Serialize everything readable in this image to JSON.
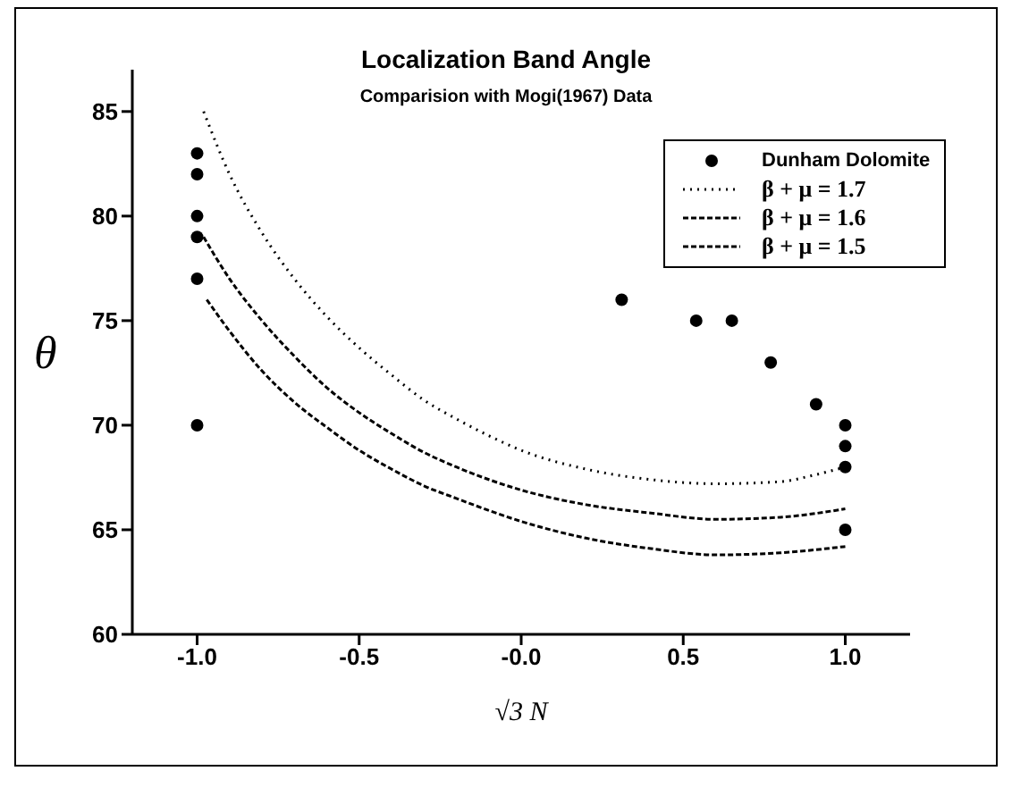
{
  "chart_data": {
    "type": "line",
    "title": "Localization Band Angle",
    "subtitle": "Comparision with Mogi(1967) Data",
    "xlabel": "√3 N",
    "ylabel": "θ",
    "xlim": [
      -1.2,
      1.2
    ],
    "xticks": [
      {
        "value": -1,
        "label": "-1.0"
      },
      {
        "value": -0.5,
        "label": "-0.5"
      },
      {
        "value": 0,
        "label": "-0.0"
      },
      {
        "value": 0.5,
        "label": "0.5"
      },
      {
        "value": 1,
        "label": "1.0"
      }
    ],
    "ylim": [
      60,
      87
    ],
    "yticks": [
      60,
      65,
      70,
      75,
      80,
      85
    ],
    "grid": false,
    "legend": "top right",
    "series": [
      {
        "name": "Dunham Dolomite",
        "type": "scatter",
        "marker": "circle",
        "color": "#000000",
        "x": [
          -1,
          -1,
          -1,
          -1,
          -1,
          -1,
          0.31,
          0.54,
          0.65,
          0.77,
          0.91,
          1,
          1,
          1,
          1
        ],
        "values": [
          83,
          82,
          80,
          79,
          77,
          70,
          76,
          75,
          75,
          73,
          71,
          70,
          69,
          68,
          65
        ]
      },
      {
        "name": "β + μ = 1.7",
        "marker": "none",
        "line_style": "dotted",
        "color": "#000000",
        "x": [
          -0.98,
          -0.9,
          -0.8,
          -0.7,
          -0.6,
          -0.5,
          -0.4,
          -0.3,
          -0.2,
          -0.1,
          0,
          0.2,
          0.4,
          0.6,
          0.8,
          0.9,
          1
        ],
        "values": [
          85,
          82,
          79.2,
          77,
          75.2,
          73.7,
          72.4,
          71.2,
          70.3,
          69.5,
          68.8,
          67.9,
          67.4,
          67.2,
          67.3,
          67.6,
          68
        ]
      },
      {
        "name": "β + μ = 1.6",
        "marker": "none",
        "line_style": "dashed",
        "color": "#000000",
        "x": [
          -0.98,
          -0.9,
          -0.8,
          -0.7,
          -0.6,
          -0.5,
          -0.4,
          -0.3,
          -0.2,
          -0.1,
          0,
          0.2,
          0.4,
          0.6,
          0.8,
          1
        ],
        "values": [
          79,
          77,
          75,
          73.3,
          71.8,
          70.6,
          69.6,
          68.7,
          68,
          67.4,
          66.9,
          66.2,
          65.8,
          65.5,
          65.6,
          66
        ]
      },
      {
        "name": "β + μ = 1.5",
        "marker": "none",
        "line_style": "dashed",
        "color": "#000000",
        "x": [
          -0.97,
          -0.9,
          -0.8,
          -0.7,
          -0.6,
          -0.5,
          -0.4,
          -0.3,
          -0.2,
          0,
          0.2,
          0.4,
          0.6,
          0.8,
          1
        ],
        "values": [
          76,
          74.5,
          72.6,
          71.1,
          69.9,
          68.8,
          67.9,
          67.1,
          66.5,
          65.4,
          64.6,
          64.1,
          63.8,
          63.9,
          64.2
        ]
      }
    ]
  }
}
